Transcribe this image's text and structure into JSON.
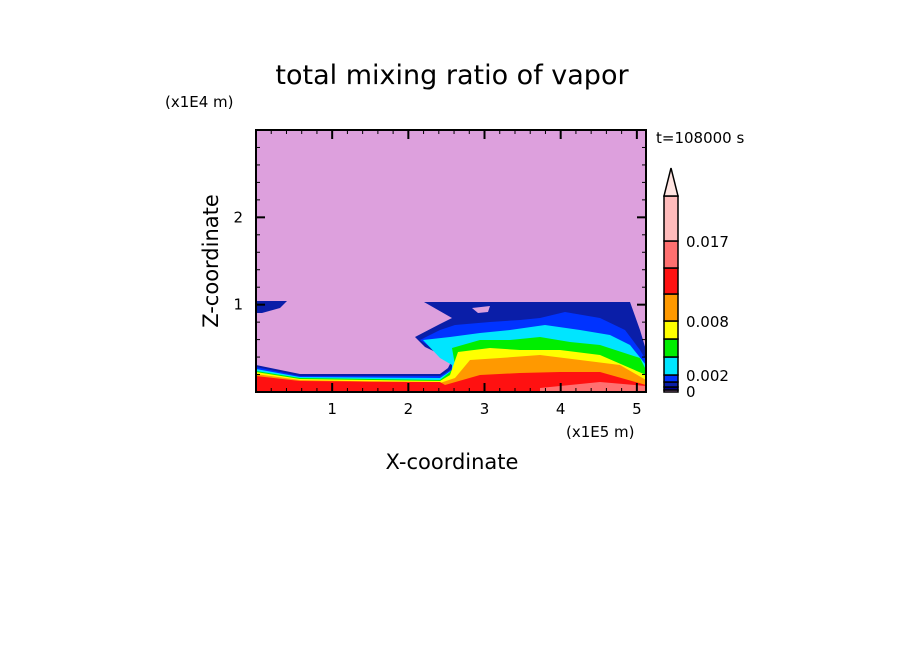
{
  "chart_data": {
    "type": "heatmap",
    "subtype": "filled-contour",
    "title": "total mixing ratio of vapor",
    "xlabel": "X-coordinate",
    "ylabel": "Z-coordinate",
    "x_unit": "(x1E5 m)",
    "y_unit": "(x1E4 m)",
    "time_label": "t=108000 s",
    "xlim": [
      0,
      5.12
    ],
    "ylim": [
      0,
      3
    ],
    "xticks": [
      "1",
      "2",
      "3",
      "4",
      "5"
    ],
    "yticks": [
      "1",
      "2"
    ],
    "background_color": "#dda0dd",
    "colorbar": {
      "labels": [
        {
          "text": "0.017",
          "value": 0.017
        },
        {
          "text": "0.008",
          "value": 0.008
        },
        {
          "text": "0.002",
          "value": 0.002
        },
        {
          "text": "0",
          "value": 0
        }
      ],
      "colors_bottom_to_top": [
        "#dda0dd",
        "#00008b",
        "#0a1ea8",
        "#0033ff",
        "#00e5ff",
        "#00ee00",
        "#ffff00",
        "#ff9900",
        "#ff1111",
        "#ff7070",
        "#ffbbbb",
        "#ffe4e1"
      ],
      "extend": "max"
    }
  }
}
